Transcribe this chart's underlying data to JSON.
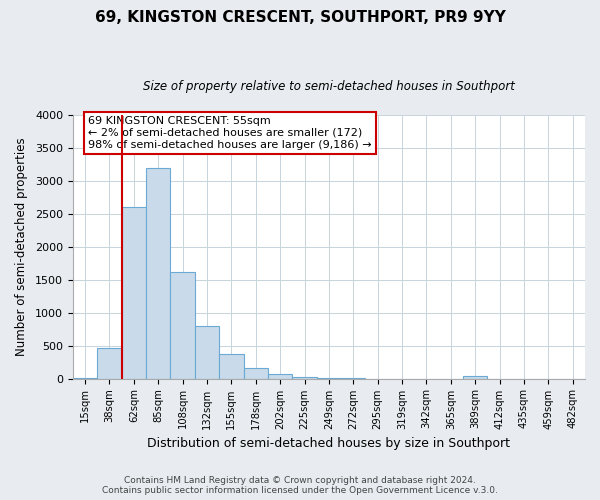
{
  "title": "69, KINGSTON CRESCENT, SOUTHPORT, PR9 9YY",
  "subtitle": "Size of property relative to semi-detached houses in Southport",
  "xlabel": "Distribution of semi-detached houses by size in Southport",
  "ylabel": "Number of semi-detached properties",
  "footer_line1": "Contains HM Land Registry data © Crown copyright and database right 2024.",
  "footer_line2": "Contains public sector information licensed under the Open Government Licence v.3.0.",
  "bar_labels": [
    "15sqm",
    "38sqm",
    "62sqm",
    "85sqm",
    "108sqm",
    "132sqm",
    "155sqm",
    "178sqm",
    "202sqm",
    "225sqm",
    "249sqm",
    "272sqm",
    "295sqm",
    "319sqm",
    "342sqm",
    "365sqm",
    "389sqm",
    "412sqm",
    "435sqm",
    "459sqm",
    "482sqm"
  ],
  "bar_values": [
    10,
    460,
    2600,
    3200,
    1620,
    800,
    380,
    160,
    65,
    20,
    5,
    2,
    0,
    0,
    0,
    0,
    35,
    0,
    0,
    0,
    0
  ],
  "bar_color": "#c9daea",
  "bar_edge_color": "#6aaad4",
  "property_label": "69 KINGSTON CRESCENT: 55sqm",
  "annotation_line1": "← 2% of semi-detached houses are smaller (172)",
  "annotation_line2": "98% of semi-detached houses are larger (9,186) →",
  "vline_color": "#cc0000",
  "annotation_box_edge_color": "#cc0000",
  "ylim": [
    0,
    4000
  ],
  "yticks": [
    0,
    500,
    1000,
    1500,
    2000,
    2500,
    3000,
    3500,
    4000
  ],
  "background_color": "#e8ecf0",
  "plot_bg_color": "#ffffff",
  "grid_color": "#c8d4dc"
}
